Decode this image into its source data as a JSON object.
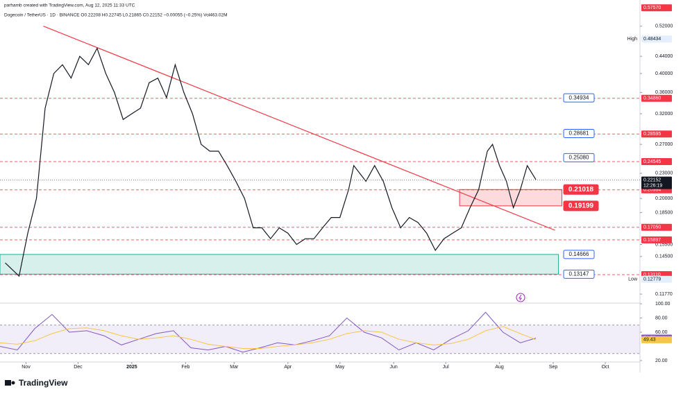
{
  "header": {
    "credit": "parhamb created with TradingView.com, Aug 12, 2025 11:33 UTC",
    "symbol_line": "Dogecoin / TetherUS · 1D · BINANCE  O0.22208  H0.22745  L0.21865  C0.22152  −0.00055 (−0.25%)  Vol463.02M"
  },
  "chart_data": [
    {
      "type": "line",
      "log_scale": true,
      "color": "#131722",
      "x": [
        -73,
        -65,
        -60,
        -55,
        -50,
        -45,
        -40,
        -35,
        -30,
        -25,
        -20,
        -15,
        -10,
        -5,
        0,
        5,
        10,
        15,
        20,
        25,
        30,
        35,
        40,
        45,
        50,
        55,
        60,
        65,
        70,
        75,
        80,
        85,
        90,
        95,
        100,
        105,
        110,
        115,
        120,
        125,
        128,
        135,
        140,
        145,
        150,
        155,
        160,
        165,
        170,
        175,
        180,
        185,
        190,
        195,
        200,
        205,
        208,
        212,
        216,
        220,
        224,
        228,
        233
      ],
      "values": [
        0.14,
        0.13,
        0.165,
        0.2,
        0.33,
        0.4,
        0.42,
        0.39,
        0.44,
        0.42,
        0.46,
        0.4,
        0.36,
        0.31,
        0.32,
        0.33,
        0.38,
        0.39,
        0.35,
        0.42,
        0.36,
        0.32,
        0.27,
        0.26,
        0.26,
        0.24,
        0.22,
        0.2,
        0.17,
        0.17,
        0.16,
        0.17,
        0.165,
        0.155,
        0.16,
        0.16,
        0.17,
        0.18,
        0.18,
        0.21,
        0.24,
        0.22,
        0.24,
        0.22,
        0.19,
        0.17,
        0.18,
        0.175,
        0.165,
        0.15,
        0.16,
        0.165,
        0.17,
        0.19,
        0.21,
        0.26,
        0.27,
        0.24,
        0.22,
        0.19,
        0.21,
        0.24,
        0.222
      ],
      "xlim": [
        -76,
        293
      ],
      "xticks": [
        {
          "value": -61,
          "label": "Nov"
        },
        {
          "value": -31,
          "label": "Dec"
        },
        {
          "value": 0,
          "label": "2025"
        },
        {
          "value": 31,
          "label": "Feb"
        },
        {
          "value": 59,
          "label": "Mar"
        },
        {
          "value": 90,
          "label": "Apr"
        },
        {
          "value": 120,
          "label": "May"
        },
        {
          "value": 151,
          "label": "Jun"
        },
        {
          "value": 181,
          "label": "Jul"
        },
        {
          "value": 212,
          "label": "Aug"
        },
        {
          "value": 243,
          "label": "Sep"
        },
        {
          "value": 273,
          "label": "Oct"
        }
      ],
      "ylim": [
        0.112,
        0.583
      ],
      "yticks": [
        {
          "value": 0.52,
          "label": "0.52000"
        },
        {
          "value": 0.44,
          "label": "0.44000"
        },
        {
          "value": 0.4,
          "label": "0.40000"
        },
        {
          "value": 0.36,
          "label": "0.36000"
        },
        {
          "value": 0.32,
          "label": "0.32000"
        },
        {
          "value": 0.27,
          "label": "0.27000"
        },
        {
          "value": 0.23,
          "label": "0.23000"
        },
        {
          "value": 0.2,
          "label": "0.20000"
        },
        {
          "value": 0.185,
          "label": "0.18500"
        },
        {
          "value": 0.155,
          "label": "0.15500"
        },
        {
          "value": 0.145,
          "label": "0.14500"
        },
        {
          "value": 0.1177,
          "label": "0.11770"
        }
      ],
      "price_tags": [
        {
          "value": 0.5757,
          "label": "0.57570",
          "color": "#f23645",
          "dashed": false
        },
        {
          "value": 0.3486,
          "label": "0.34860",
          "color": "#f23645",
          "dashed": true
        },
        {
          "value": 0.28595,
          "label": "0.28595",
          "color": "#f23645",
          "dashed": true
        },
        {
          "value": 0.24545,
          "label": "0.24545",
          "color": "#f23645",
          "dashed": true
        },
        {
          "value": 0.20984,
          "label": "0.20984",
          "color": "#f23645",
          "dashed": true
        },
        {
          "value": 0.1705,
          "label": "0.17050",
          "color": "#f23645",
          "dashed": true
        },
        {
          "value": 0.15897,
          "label": "0.15897",
          "color": "#f23645",
          "dashed": true
        },
        {
          "value": 0.1311,
          "label": "0.13110",
          "color": "#f23645",
          "dashed": true
        }
      ],
      "current": {
        "value": 0.22152,
        "label": "0.22152",
        "countdown": "12:26:19"
      },
      "high": {
        "text": "High",
        "value": 0.48434,
        "label": "0.48434"
      },
      "low": {
        "text": "Low",
        "value": 0.12779,
        "label": "0.12779"
      },
      "trendline": {
        "x": [
          -51,
          244
        ],
        "values": [
          0.52,
          0.1677
        ],
        "color": "#f23645"
      },
      "zones": [
        {
          "x": [
            -76,
            246
          ],
          "values": [
            0.13147,
            0.14666
          ],
          "color": "#22ab94"
        },
        {
          "x": [
            189,
            248
          ],
          "values": [
            0.19199,
            0.21018
          ],
          "color": "#f23645"
        }
      ],
      "callouts": [
        {
          "value": 0.34934,
          "label": "0.34934",
          "color": "#2962ff",
          "filled": false
        },
        {
          "value": 0.28681,
          "label": "0.28681",
          "color": "#2962ff",
          "filled": false
        },
        {
          "value": 0.2508,
          "label": "0.25080",
          "color": "#2962ff",
          "filled": false
        },
        {
          "value": 0.21018,
          "label": "0.21018",
          "color": "#f23645",
          "filled": true
        },
        {
          "value": 0.19199,
          "label": "0.19199",
          "color": "#f23645",
          "filled": true
        },
        {
          "value": 0.14666,
          "label": "0.14666",
          "color": "#2962ff",
          "filled": false
        },
        {
          "value": 0.13147,
          "label": "0.13147",
          "color": "#2962ff",
          "filled": false
        }
      ]
    },
    {
      "type": "line",
      "x": [
        -76,
        -66,
        -56,
        -46,
        -36,
        -26,
        -16,
        -6,
        4,
        14,
        24,
        34,
        44,
        54,
        64,
        74,
        84,
        94,
        104,
        114,
        124,
        134,
        144,
        154,
        164,
        174,
        184,
        194,
        204,
        214,
        224,
        233
      ],
      "series": [
        {
          "color": "#7e57c2",
          "values": [
            40,
            35,
            65,
            85,
            60,
            62,
            55,
            42,
            50,
            58,
            62,
            38,
            35,
            40,
            32,
            38,
            45,
            42,
            48,
            55,
            80,
            60,
            52,
            35,
            45,
            35,
            50,
            62,
            88,
            60,
            45,
            51.7
          ],
          "tag": {
            "value": 51.7,
            "label": "51.70"
          }
        },
        {
          "color": "#f7c548",
          "values": [
            45,
            43,
            48,
            58,
            65,
            66,
            62,
            55,
            50,
            52,
            55,
            50,
            43,
            40,
            37,
            37,
            40,
            42,
            45,
            50,
            58,
            62,
            60,
            50,
            45,
            42,
            44,
            50,
            62,
            68,
            58,
            49.43
          ],
          "tag": {
            "value": 49.43,
            "label": "49.43"
          }
        }
      ],
      "xlim": [
        -76,
        293
      ],
      "ylim": [
        18,
        101
      ],
      "band": [
        30,
        70
      ],
      "yticks": [
        {
          "value": 100,
          "label": "100.00"
        },
        {
          "value": 80,
          "label": "80.00"
        },
        {
          "value": 60,
          "label": "60.00"
        },
        {
          "value": 20,
          "label": "20.00"
        }
      ]
    }
  ],
  "footer": {
    "brand": "TradingView"
  }
}
